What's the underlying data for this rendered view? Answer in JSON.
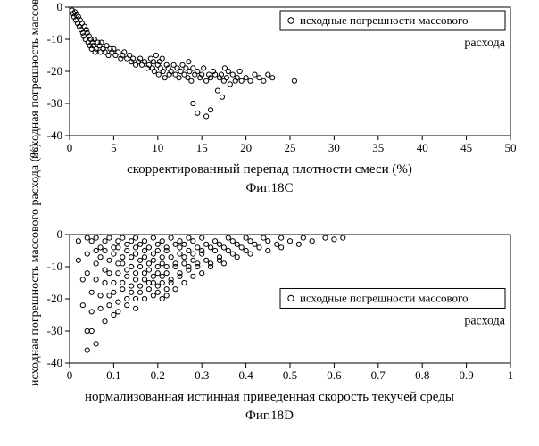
{
  "colors": {
    "background": "#ffffff",
    "axis": "#000000",
    "marker_stroke": "#000000",
    "text": "#000000"
  },
  "chartC": {
    "type": "scatter",
    "title_fontsize": 14,
    "marker_style": "open-circle",
    "marker_radius": 2.6,
    "xlabel": "скорректированный перепад плотности смеси (%)",
    "ylabel": "исходная погрешность массового расхода (%)",
    "caption": "Фиг.18C",
    "xlim": [
      0,
      50
    ],
    "ylim": [
      -40,
      0
    ],
    "xtick_step": 5,
    "ytick_step": 10,
    "legend": {
      "marker": "open-circle",
      "line1": "исходные погрешности массового",
      "line2": "расхода",
      "box": true,
      "position": "upper-right"
    },
    "points": [
      [
        0.3,
        -1
      ],
      [
        0.4,
        -2
      ],
      [
        0.5,
        -3
      ],
      [
        0.6,
        -1.5
      ],
      [
        0.7,
        -4
      ],
      [
        0.8,
        -2.5
      ],
      [
        0.9,
        -5
      ],
      [
        1.0,
        -3
      ],
      [
        1.1,
        -6
      ],
      [
        1.2,
        -4
      ],
      [
        1.3,
        -7
      ],
      [
        1.4,
        -5
      ],
      [
        1.5,
        -8
      ],
      [
        1.6,
        -9
      ],
      [
        1.7,
        -6
      ],
      [
        1.8,
        -10
      ],
      [
        1.9,
        -7
      ],
      [
        2.0,
        -8
      ],
      [
        2.1,
        -11
      ],
      [
        2.2,
        -9
      ],
      [
        2.3,
        -12
      ],
      [
        2.4,
        -10
      ],
      [
        2.5,
        -13
      ],
      [
        2.6,
        -11
      ],
      [
        2.7,
        -12
      ],
      [
        2.8,
        -10
      ],
      [
        2.9,
        -14
      ],
      [
        3.0,
        -13
      ],
      [
        3.2,
        -11
      ],
      [
        3.4,
        -12
      ],
      [
        3.5,
        -14
      ],
      [
        3.6,
        -11
      ],
      [
        3.8,
        -13
      ],
      [
        4.0,
        -14
      ],
      [
        4.2,
        -12
      ],
      [
        4.4,
        -15
      ],
      [
        4.6,
        -13
      ],
      [
        4.8,
        -14
      ],
      [
        5.0,
        -13
      ],
      [
        5.2,
        -15
      ],
      [
        5.5,
        -14
      ],
      [
        5.8,
        -16
      ],
      [
        6.0,
        -15
      ],
      [
        6.2,
        -14
      ],
      [
        6.5,
        -16
      ],
      [
        6.8,
        -15
      ],
      [
        7.0,
        -17
      ],
      [
        7.2,
        -16
      ],
      [
        7.5,
        -18
      ],
      [
        7.8,
        -17
      ],
      [
        8.0,
        -16
      ],
      [
        8.2,
        -18
      ],
      [
        8.5,
        -17
      ],
      [
        8.8,
        -19
      ],
      [
        9.0,
        -18
      ],
      [
        9.2,
        -16
      ],
      [
        9.4,
        -19
      ],
      [
        9.5,
        -17
      ],
      [
        9.6,
        -20
      ],
      [
        9.8,
        -15
      ],
      [
        10.0,
        -18
      ],
      [
        10.1,
        -21
      ],
      [
        10.2,
        -17
      ],
      [
        10.3,
        -19
      ],
      [
        10.5,
        -16
      ],
      [
        10.6,
        -20
      ],
      [
        10.8,
        -22
      ],
      [
        11.0,
        -18
      ],
      [
        11.2,
        -19
      ],
      [
        11.3,
        -21
      ],
      [
        11.5,
        -20
      ],
      [
        11.8,
        -18
      ],
      [
        12.0,
        -21
      ],
      [
        12.2,
        -19
      ],
      [
        12.4,
        -22
      ],
      [
        12.6,
        -20
      ],
      [
        12.8,
        -18
      ],
      [
        13.0,
        -21
      ],
      [
        13.2,
        -19
      ],
      [
        13.4,
        -22
      ],
      [
        13.5,
        -17
      ],
      [
        13.6,
        -20
      ],
      [
        13.8,
        -23
      ],
      [
        14.0,
        -19
      ],
      [
        14.2,
        -21
      ],
      [
        14.5,
        -20
      ],
      [
        14.8,
        -22
      ],
      [
        15.0,
        -21
      ],
      [
        15.2,
        -19
      ],
      [
        15.5,
        -23
      ],
      [
        15.8,
        -21
      ],
      [
        16.0,
        -22
      ],
      [
        16.3,
        -20
      ],
      [
        16.5,
        -21
      ],
      [
        16.8,
        -26
      ],
      [
        17.0,
        -22
      ],
      [
        17.2,
        -21
      ],
      [
        17.3,
        -28
      ],
      [
        17.5,
        -23
      ],
      [
        17.6,
        -19
      ],
      [
        17.8,
        -22
      ],
      [
        18.0,
        -20
      ],
      [
        18.2,
        -24
      ],
      [
        18.5,
        -21
      ],
      [
        18.8,
        -23
      ],
      [
        19.0,
        -22
      ],
      [
        19.3,
        -20
      ],
      [
        19.5,
        -23
      ],
      [
        20.0,
        -22
      ],
      [
        20.5,
        -23
      ],
      [
        21.0,
        -21
      ],
      [
        21.5,
        -22
      ],
      [
        22.0,
        -23
      ],
      [
        22.5,
        -21
      ],
      [
        23.0,
        -22
      ],
      [
        25.5,
        -23
      ],
      [
        14.0,
        -30
      ],
      [
        14.5,
        -33
      ],
      [
        15.5,
        -34
      ],
      [
        16.0,
        -32
      ]
    ]
  },
  "chartD": {
    "type": "scatter",
    "title_fontsize": 14,
    "marker_style": "open-circle",
    "marker_radius": 2.6,
    "xlabel": "нормализованная истинная приведенная скорость текучей среды",
    "ylabel": "исходная погрешность массового расхода (%)",
    "caption": "Фиг.18D",
    "xlim": [
      0,
      1
    ],
    "ylim": [
      -40,
      0
    ],
    "xtick_step": 0.1,
    "ytick_step": 10,
    "legend": {
      "marker": "open-circle",
      "line1": "исходные погрешности массового",
      "line2": "расхода",
      "box": true,
      "position": "right-mid"
    },
    "points": [
      [
        0.02,
        -2
      ],
      [
        0.02,
        -8
      ],
      [
        0.03,
        -14
      ],
      [
        0.03,
        -22
      ],
      [
        0.04,
        -30
      ],
      [
        0.04,
        -36
      ],
      [
        0.04,
        -1
      ],
      [
        0.04,
        -6
      ],
      [
        0.04,
        -12
      ],
      [
        0.05,
        -18
      ],
      [
        0.05,
        -24
      ],
      [
        0.05,
        -30
      ],
      [
        0.06,
        -34
      ],
      [
        0.05,
        -2
      ],
      [
        0.06,
        -5
      ],
      [
        0.06,
        -9
      ],
      [
        0.06,
        -14
      ],
      [
        0.07,
        -19
      ],
      [
        0.07,
        -23
      ],
      [
        0.08,
        -27
      ],
      [
        0.06,
        -1
      ],
      [
        0.07,
        -4
      ],
      [
        0.07,
        -7
      ],
      [
        0.08,
        -11
      ],
      [
        0.08,
        -15
      ],
      [
        0.09,
        -19
      ],
      [
        0.09,
        -22
      ],
      [
        0.1,
        -25
      ],
      [
        0.08,
        -2
      ],
      [
        0.08,
        -5
      ],
      [
        0.09,
        -8
      ],
      [
        0.09,
        -12
      ],
      [
        0.1,
        -15
      ],
      [
        0.1,
        -18
      ],
      [
        0.11,
        -21
      ],
      [
        0.11,
        -24
      ],
      [
        0.09,
        -1
      ],
      [
        0.1,
        -4
      ],
      [
        0.1,
        -6
      ],
      [
        0.11,
        -9
      ],
      [
        0.11,
        -12
      ],
      [
        0.12,
        -15
      ],
      [
        0.12,
        -17
      ],
      [
        0.13,
        -20
      ],
      [
        0.13,
        -22
      ],
      [
        0.11,
        -2
      ],
      [
        0.11,
        -4
      ],
      [
        0.12,
        -7
      ],
      [
        0.12,
        -9
      ],
      [
        0.13,
        -11
      ],
      [
        0.13,
        -13
      ],
      [
        0.14,
        -16
      ],
      [
        0.14,
        -18
      ],
      [
        0.15,
        -20
      ],
      [
        0.15,
        -23
      ],
      [
        0.12,
        -1
      ],
      [
        0.13,
        -3
      ],
      [
        0.13,
        -5
      ],
      [
        0.14,
        -7
      ],
      [
        0.14,
        -10
      ],
      [
        0.15,
        -12
      ],
      [
        0.15,
        -14
      ],
      [
        0.16,
        -16
      ],
      [
        0.16,
        -18
      ],
      [
        0.17,
        -20
      ],
      [
        0.14,
        -2
      ],
      [
        0.15,
        -4
      ],
      [
        0.15,
        -6
      ],
      [
        0.16,
        -8
      ],
      [
        0.16,
        -10
      ],
      [
        0.17,
        -12
      ],
      [
        0.17,
        -14
      ],
      [
        0.18,
        -15
      ],
      [
        0.18,
        -17
      ],
      [
        0.19,
        -19
      ],
      [
        0.15,
        -1
      ],
      [
        0.16,
        -3
      ],
      [
        0.17,
        -5
      ],
      [
        0.17,
        -7
      ],
      [
        0.18,
        -9
      ],
      [
        0.18,
        -11
      ],
      [
        0.19,
        -13
      ],
      [
        0.19,
        -15
      ],
      [
        0.2,
        -16
      ],
      [
        0.2,
        -18
      ],
      [
        0.21,
        -20
      ],
      [
        0.17,
        -2
      ],
      [
        0.18,
        -4
      ],
      [
        0.19,
        -6
      ],
      [
        0.19,
        -8
      ],
      [
        0.2,
        -10
      ],
      [
        0.2,
        -12
      ],
      [
        0.21,
        -13
      ],
      [
        0.21,
        -15
      ],
      [
        0.22,
        -17
      ],
      [
        0.22,
        -19
      ],
      [
        0.19,
        -1
      ],
      [
        0.2,
        -3
      ],
      [
        0.2,
        -5
      ],
      [
        0.21,
        -7
      ],
      [
        0.21,
        -9
      ],
      [
        0.22,
        -10
      ],
      [
        0.22,
        -12
      ],
      [
        0.23,
        -14
      ],
      [
        0.23,
        -15
      ],
      [
        0.24,
        -17
      ],
      [
        0.21,
        -2
      ],
      [
        0.22,
        -4
      ],
      [
        0.22,
        -5
      ],
      [
        0.23,
        -7
      ],
      [
        0.24,
        -9
      ],
      [
        0.24,
        -10
      ],
      [
        0.25,
        -12
      ],
      [
        0.25,
        -13
      ],
      [
        0.26,
        -15
      ],
      [
        0.23,
        -1
      ],
      [
        0.24,
        -3
      ],
      [
        0.25,
        -4
      ],
      [
        0.25,
        -6
      ],
      [
        0.26,
        -7
      ],
      [
        0.26,
        -9
      ],
      [
        0.27,
        -10
      ],
      [
        0.27,
        -11
      ],
      [
        0.28,
        -13
      ],
      [
        0.25,
        -2
      ],
      [
        0.26,
        -3
      ],
      [
        0.27,
        -5
      ],
      [
        0.28,
        -6
      ],
      [
        0.28,
        -8
      ],
      [
        0.29,
        -9
      ],
      [
        0.29,
        -10
      ],
      [
        0.3,
        -12
      ],
      [
        0.27,
        -1
      ],
      [
        0.28,
        -2
      ],
      [
        0.29,
        -4
      ],
      [
        0.3,
        -5
      ],
      [
        0.3,
        -6
      ],
      [
        0.31,
        -8
      ],
      [
        0.32,
        -9
      ],
      [
        0.32,
        -10
      ],
      [
        0.3,
        -1
      ],
      [
        0.31,
        -3
      ],
      [
        0.32,
        -4
      ],
      [
        0.33,
        -5
      ],
      [
        0.34,
        -7
      ],
      [
        0.34,
        -8
      ],
      [
        0.35,
        -9
      ],
      [
        0.33,
        -2
      ],
      [
        0.34,
        -3
      ],
      [
        0.35,
        -4
      ],
      [
        0.36,
        -5
      ],
      [
        0.37,
        -6
      ],
      [
        0.38,
        -7
      ],
      [
        0.36,
        -1
      ],
      [
        0.37,
        -2
      ],
      [
        0.38,
        -3
      ],
      [
        0.39,
        -4
      ],
      [
        0.4,
        -5
      ],
      [
        0.41,
        -6
      ],
      [
        0.4,
        -1
      ],
      [
        0.41,
        -2
      ],
      [
        0.42,
        -3
      ],
      [
        0.43,
        -4
      ],
      [
        0.45,
        -5
      ],
      [
        0.44,
        -1
      ],
      [
        0.45,
        -2
      ],
      [
        0.47,
        -3
      ],
      [
        0.48,
        -4
      ],
      [
        0.48,
        -1
      ],
      [
        0.5,
        -2
      ],
      [
        0.52,
        -3
      ],
      [
        0.53,
        -1
      ],
      [
        0.55,
        -2
      ],
      [
        0.58,
        -1
      ],
      [
        0.6,
        -1.5
      ],
      [
        0.62,
        -1
      ]
    ]
  }
}
